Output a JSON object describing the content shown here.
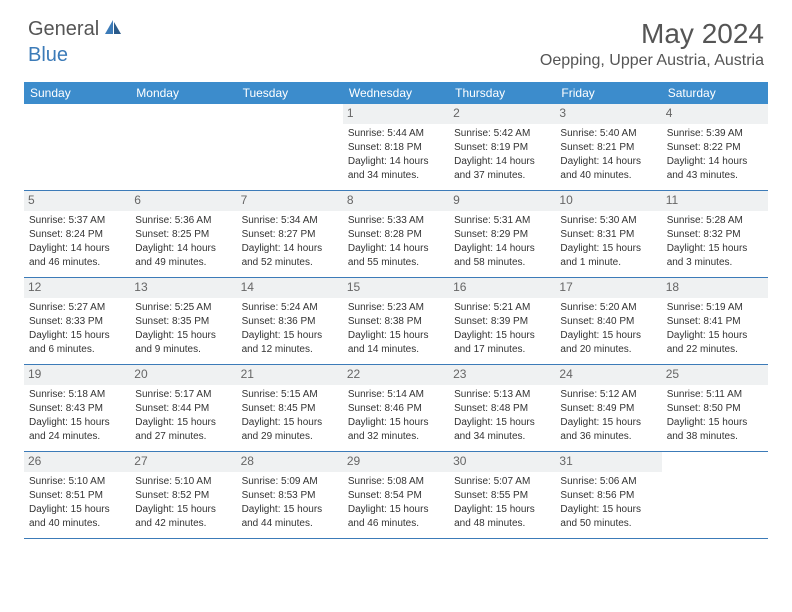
{
  "logo": {
    "text1": "General",
    "text2": "Blue",
    "brand_color": "#3c7bb8",
    "text_color": "#555555"
  },
  "header": {
    "month_title": "May 2024",
    "location": "Oepping, Upper Austria, Austria"
  },
  "colors": {
    "header_bg": "#3c8ccc",
    "header_text": "#ffffff",
    "day_number_bg": "#eff1f2",
    "day_number_text": "#666666",
    "cell_text": "#333333",
    "row_border": "#3c7bb8",
    "page_bg": "#ffffff"
  },
  "weekdays": [
    "Sunday",
    "Monday",
    "Tuesday",
    "Wednesday",
    "Thursday",
    "Friday",
    "Saturday"
  ],
  "weeks": [
    [
      null,
      null,
      null,
      {
        "n": "1",
        "sr": "Sunrise: 5:44 AM",
        "ss": "Sunset: 8:18 PM",
        "d1": "Daylight: 14 hours",
        "d2": "and 34 minutes."
      },
      {
        "n": "2",
        "sr": "Sunrise: 5:42 AM",
        "ss": "Sunset: 8:19 PM",
        "d1": "Daylight: 14 hours",
        "d2": "and 37 minutes."
      },
      {
        "n": "3",
        "sr": "Sunrise: 5:40 AM",
        "ss": "Sunset: 8:21 PM",
        "d1": "Daylight: 14 hours",
        "d2": "and 40 minutes."
      },
      {
        "n": "4",
        "sr": "Sunrise: 5:39 AM",
        "ss": "Sunset: 8:22 PM",
        "d1": "Daylight: 14 hours",
        "d2": "and 43 minutes."
      }
    ],
    [
      {
        "n": "5",
        "sr": "Sunrise: 5:37 AM",
        "ss": "Sunset: 8:24 PM",
        "d1": "Daylight: 14 hours",
        "d2": "and 46 minutes."
      },
      {
        "n": "6",
        "sr": "Sunrise: 5:36 AM",
        "ss": "Sunset: 8:25 PM",
        "d1": "Daylight: 14 hours",
        "d2": "and 49 minutes."
      },
      {
        "n": "7",
        "sr": "Sunrise: 5:34 AM",
        "ss": "Sunset: 8:27 PM",
        "d1": "Daylight: 14 hours",
        "d2": "and 52 minutes."
      },
      {
        "n": "8",
        "sr": "Sunrise: 5:33 AM",
        "ss": "Sunset: 8:28 PM",
        "d1": "Daylight: 14 hours",
        "d2": "and 55 minutes."
      },
      {
        "n": "9",
        "sr": "Sunrise: 5:31 AM",
        "ss": "Sunset: 8:29 PM",
        "d1": "Daylight: 14 hours",
        "d2": "and 58 minutes."
      },
      {
        "n": "10",
        "sr": "Sunrise: 5:30 AM",
        "ss": "Sunset: 8:31 PM",
        "d1": "Daylight: 15 hours",
        "d2": "and 1 minute."
      },
      {
        "n": "11",
        "sr": "Sunrise: 5:28 AM",
        "ss": "Sunset: 8:32 PM",
        "d1": "Daylight: 15 hours",
        "d2": "and 3 minutes."
      }
    ],
    [
      {
        "n": "12",
        "sr": "Sunrise: 5:27 AM",
        "ss": "Sunset: 8:33 PM",
        "d1": "Daylight: 15 hours",
        "d2": "and 6 minutes."
      },
      {
        "n": "13",
        "sr": "Sunrise: 5:25 AM",
        "ss": "Sunset: 8:35 PM",
        "d1": "Daylight: 15 hours",
        "d2": "and 9 minutes."
      },
      {
        "n": "14",
        "sr": "Sunrise: 5:24 AM",
        "ss": "Sunset: 8:36 PM",
        "d1": "Daylight: 15 hours",
        "d2": "and 12 minutes."
      },
      {
        "n": "15",
        "sr": "Sunrise: 5:23 AM",
        "ss": "Sunset: 8:38 PM",
        "d1": "Daylight: 15 hours",
        "d2": "and 14 minutes."
      },
      {
        "n": "16",
        "sr": "Sunrise: 5:21 AM",
        "ss": "Sunset: 8:39 PM",
        "d1": "Daylight: 15 hours",
        "d2": "and 17 minutes."
      },
      {
        "n": "17",
        "sr": "Sunrise: 5:20 AM",
        "ss": "Sunset: 8:40 PM",
        "d1": "Daylight: 15 hours",
        "d2": "and 20 minutes."
      },
      {
        "n": "18",
        "sr": "Sunrise: 5:19 AM",
        "ss": "Sunset: 8:41 PM",
        "d1": "Daylight: 15 hours",
        "d2": "and 22 minutes."
      }
    ],
    [
      {
        "n": "19",
        "sr": "Sunrise: 5:18 AM",
        "ss": "Sunset: 8:43 PM",
        "d1": "Daylight: 15 hours",
        "d2": "and 24 minutes."
      },
      {
        "n": "20",
        "sr": "Sunrise: 5:17 AM",
        "ss": "Sunset: 8:44 PM",
        "d1": "Daylight: 15 hours",
        "d2": "and 27 minutes."
      },
      {
        "n": "21",
        "sr": "Sunrise: 5:15 AM",
        "ss": "Sunset: 8:45 PM",
        "d1": "Daylight: 15 hours",
        "d2": "and 29 minutes."
      },
      {
        "n": "22",
        "sr": "Sunrise: 5:14 AM",
        "ss": "Sunset: 8:46 PM",
        "d1": "Daylight: 15 hours",
        "d2": "and 32 minutes."
      },
      {
        "n": "23",
        "sr": "Sunrise: 5:13 AM",
        "ss": "Sunset: 8:48 PM",
        "d1": "Daylight: 15 hours",
        "d2": "and 34 minutes."
      },
      {
        "n": "24",
        "sr": "Sunrise: 5:12 AM",
        "ss": "Sunset: 8:49 PM",
        "d1": "Daylight: 15 hours",
        "d2": "and 36 minutes."
      },
      {
        "n": "25",
        "sr": "Sunrise: 5:11 AM",
        "ss": "Sunset: 8:50 PM",
        "d1": "Daylight: 15 hours",
        "d2": "and 38 minutes."
      }
    ],
    [
      {
        "n": "26",
        "sr": "Sunrise: 5:10 AM",
        "ss": "Sunset: 8:51 PM",
        "d1": "Daylight: 15 hours",
        "d2": "and 40 minutes."
      },
      {
        "n": "27",
        "sr": "Sunrise: 5:10 AM",
        "ss": "Sunset: 8:52 PM",
        "d1": "Daylight: 15 hours",
        "d2": "and 42 minutes."
      },
      {
        "n": "28",
        "sr": "Sunrise: 5:09 AM",
        "ss": "Sunset: 8:53 PM",
        "d1": "Daylight: 15 hours",
        "d2": "and 44 minutes."
      },
      {
        "n": "29",
        "sr": "Sunrise: 5:08 AM",
        "ss": "Sunset: 8:54 PM",
        "d1": "Daylight: 15 hours",
        "d2": "and 46 minutes."
      },
      {
        "n": "30",
        "sr": "Sunrise: 5:07 AM",
        "ss": "Sunset: 8:55 PM",
        "d1": "Daylight: 15 hours",
        "d2": "and 48 minutes."
      },
      {
        "n": "31",
        "sr": "Sunrise: 5:06 AM",
        "ss": "Sunset: 8:56 PM",
        "d1": "Daylight: 15 hours",
        "d2": "and 50 minutes."
      },
      null
    ]
  ]
}
